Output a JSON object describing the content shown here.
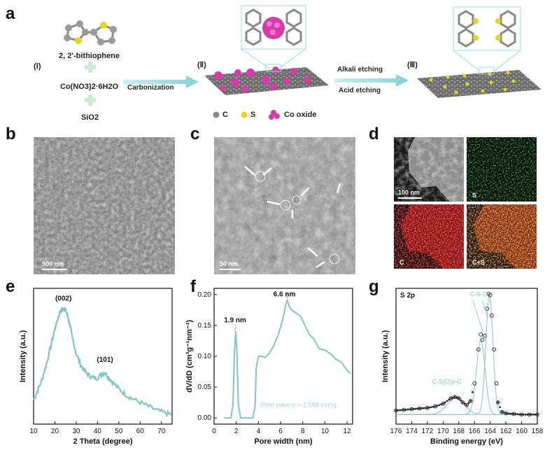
{
  "panel_letters": [
    "a",
    "b",
    "c",
    "d",
    "e",
    "f",
    "g"
  ],
  "schematic": {
    "step1_label": "(Ⅰ)",
    "step2_label": "(Ⅱ)",
    "step3_label": "(Ⅲ)",
    "precursor_1": "2, 2'-bithiophene",
    "precursor_2": "Co(NO3)2·6H2O",
    "precursor_3": "SiO2",
    "arrow_1": "Carbonization",
    "arrow_2_top": "Alkali etching",
    "arrow_2_bottom": "Acid etching",
    "legend": [
      {
        "name": "C",
        "color": "#8a8a8a"
      },
      {
        "name": "S",
        "color": "#e6d617"
      },
      {
        "name": "Co oxide",
        "color": "#d83aa8"
      }
    ]
  },
  "sem": {
    "scalebar": "500 nm"
  },
  "tem": {
    "scalebar": "50 nm"
  },
  "mapping": {
    "scalebar": "100 nm",
    "labels": [
      "",
      "S",
      "C",
      "C+S"
    ],
    "colors": [
      "#b8b8b8",
      "#1fbf2a",
      "#e41e1e",
      "#e0501a"
    ]
  },
  "chart_data": [
    {
      "type": "line",
      "panel": "e",
      "title": "",
      "xlabel": "2 Theta (degree)",
      "ylabel": "Intensity (a.u.)",
      "xlim": [
        10,
        75
      ],
      "xticks": [
        10,
        20,
        30,
        40,
        50,
        60,
        70
      ],
      "color": "#7ec8c0",
      "annotations": [
        {
          "text": "(002)",
          "x": 24,
          "y": 0.91
        },
        {
          "text": "(101)",
          "x": 43.5,
          "y": 0.46
        }
      ],
      "series": [
        {
          "values": [
            [
              10,
              0.18
            ],
            [
              12,
              0.25
            ],
            [
              14,
              0.33
            ],
            [
              16,
              0.44
            ],
            [
              18,
              0.57
            ],
            [
              20,
              0.7
            ],
            [
              21,
              0.76
            ],
            [
              22,
              0.81
            ],
            [
              23,
              0.84
            ],
            [
              24,
              0.86
            ],
            [
              25,
              0.84
            ],
            [
              26,
              0.8
            ],
            [
              27,
              0.73
            ],
            [
              28,
              0.65
            ],
            [
              30,
              0.52
            ],
            [
              32,
              0.44
            ],
            [
              34,
              0.39
            ],
            [
              36,
              0.36
            ],
            [
              38,
              0.34
            ],
            [
              40,
              0.34
            ],
            [
              42,
              0.37
            ],
            [
              43.5,
              0.38
            ],
            [
              45,
              0.35
            ],
            [
              47,
              0.31
            ],
            [
              50,
              0.26
            ],
            [
              53,
              0.22
            ],
            [
              56,
              0.19
            ],
            [
              60,
              0.16
            ],
            [
              64,
              0.13
            ],
            [
              68,
              0.1
            ],
            [
              72,
              0.08
            ],
            [
              75,
              0.07
            ]
          ]
        }
      ]
    },
    {
      "type": "line",
      "panel": "f",
      "title": "",
      "xlabel": "Pore width (nm)",
      "ylabel": "dV/dD (cm³g⁻¹nm⁻¹)",
      "xlim": [
        0,
        12.5
      ],
      "ylim": [
        -0.01,
        0.21
      ],
      "xticks": [
        0,
        2,
        4,
        6,
        8,
        10,
        12
      ],
      "yticks": [
        0.0,
        0.05,
        0.1,
        0.15,
        0.2
      ],
      "color": "#7ec8c0",
      "annotations": [
        {
          "text": "1.9 nm",
          "x": 1.9,
          "y": 0.155
        },
        {
          "text": "6.6 nm",
          "x": 6.6,
          "y": 0.197
        },
        {
          "text": "Pore volume = 2.598 cm³/g"
        }
      ],
      "series": [
        {
          "values": [
            [
              0.9,
              0
            ],
            [
              1.5,
              0
            ],
            [
              1.7,
              0.02
            ],
            [
              1.85,
              0.11
            ],
            [
              1.95,
              0.14
            ],
            [
              2.05,
              0.11
            ],
            [
              2.2,
              0.02
            ],
            [
              2.4,
              0
            ],
            [
              3.5,
              0
            ],
            [
              3.7,
              0.02
            ],
            [
              3.8,
              0.08
            ],
            [
              4.0,
              0.1
            ],
            [
              4.3,
              0.1
            ],
            [
              4.6,
              0.098
            ],
            [
              5.0,
              0.105
            ],
            [
              5.4,
              0.118
            ],
            [
              5.8,
              0.135
            ],
            [
              6.2,
              0.16
            ],
            [
              6.5,
              0.186
            ],
            [
              6.6,
              0.19
            ],
            [
              6.8,
              0.18
            ],
            [
              7.0,
              0.175
            ],
            [
              7.4,
              0.17
            ],
            [
              7.8,
              0.165
            ],
            [
              8.2,
              0.15
            ],
            [
              8.6,
              0.135
            ],
            [
              9.0,
              0.128
            ],
            [
              9.5,
              0.112
            ],
            [
              10.0,
              0.11
            ],
            [
              10.5,
              0.104
            ],
            [
              11.0,
              0.095
            ],
            [
              11.5,
              0.09
            ],
            [
              12.0,
              0.077
            ],
            [
              12.3,
              0.072
            ]
          ]
        }
      ]
    },
    {
      "type": "scatter",
      "panel": "g",
      "title": "S 2p",
      "xlabel": "Binding energy (eV)",
      "ylabel": "Intensity (a.u.)",
      "xlim": [
        176,
        158
      ],
      "xticks": [
        176,
        174,
        172,
        170,
        168,
        166,
        164,
        162,
        160,
        158
      ],
      "color": "#7ec8c0",
      "annotations": [
        {
          "text": "C-S-C",
          "x": 165.5,
          "y": 0.94
        },
        {
          "text": "C-S(O)x-C",
          "x": 169.5,
          "y": 0.3
        }
      ],
      "series": [
        {
          "values": [
            [
              176,
              0.1
            ],
            [
              175,
              0.105
            ],
            [
              174,
              0.11
            ],
            [
              173,
              0.115
            ],
            [
              172,
              0.12
            ],
            [
              171,
              0.13
            ],
            [
              170,
              0.15
            ],
            [
              169,
              0.19
            ],
            [
              168.5,
              0.2
            ],
            [
              168,
              0.19
            ],
            [
              167.5,
              0.16
            ],
            [
              167,
              0.14
            ],
            [
              166.5,
              0.17
            ],
            [
              166,
              0.3
            ],
            [
              165.5,
              0.55
            ],
            [
              165.2,
              0.66
            ],
            [
              165,
              0.62
            ],
            [
              164.7,
              0.65
            ],
            [
              164.4,
              0.85
            ],
            [
              164.2,
              0.96
            ],
            [
              164,
              0.95
            ],
            [
              163.8,
              0.8
            ],
            [
              163.5,
              0.55
            ],
            [
              163.2,
              0.3
            ],
            [
              163,
              0.16
            ],
            [
              162.5,
              0.09
            ],
            [
              162,
              0.08
            ],
            [
              161,
              0.075
            ],
            [
              160,
              0.07
            ],
            [
              159,
              0.07
            ],
            [
              158,
              0.07
            ]
          ]
        }
      ]
    }
  ]
}
